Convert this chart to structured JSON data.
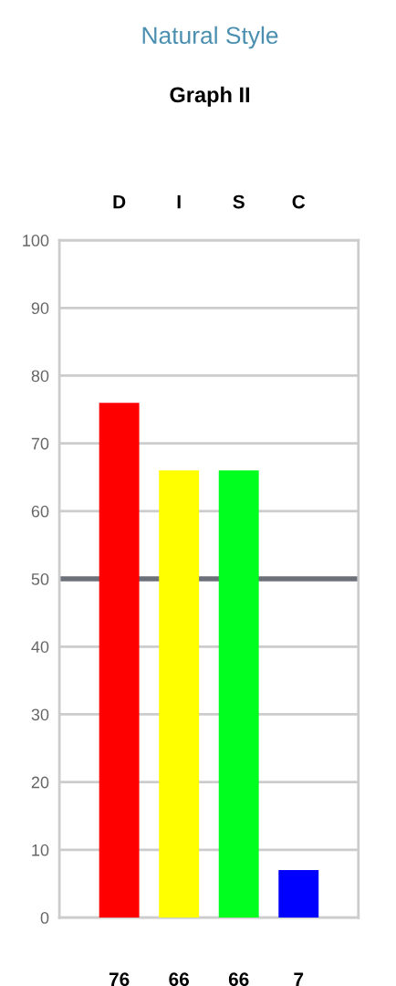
{
  "chart_data": {
    "type": "bar",
    "title": "Natural Style",
    "subtitle": "Graph II",
    "categories": [
      "D",
      "I",
      "S",
      "C"
    ],
    "values": [
      76,
      66,
      66,
      7
    ],
    "colors": [
      "#ff0000",
      "#ffff00",
      "#00ff1e",
      "#0000ff"
    ],
    "ylim": [
      0,
      100
    ],
    "yticks": [
      0,
      10,
      20,
      30,
      40,
      50,
      60,
      70,
      80,
      90,
      100
    ],
    "grid": "y",
    "data_labels": true,
    "ref_lines": [
      {
        "axis": "y",
        "value": 50,
        "color": "#6b7079"
      }
    ]
  }
}
